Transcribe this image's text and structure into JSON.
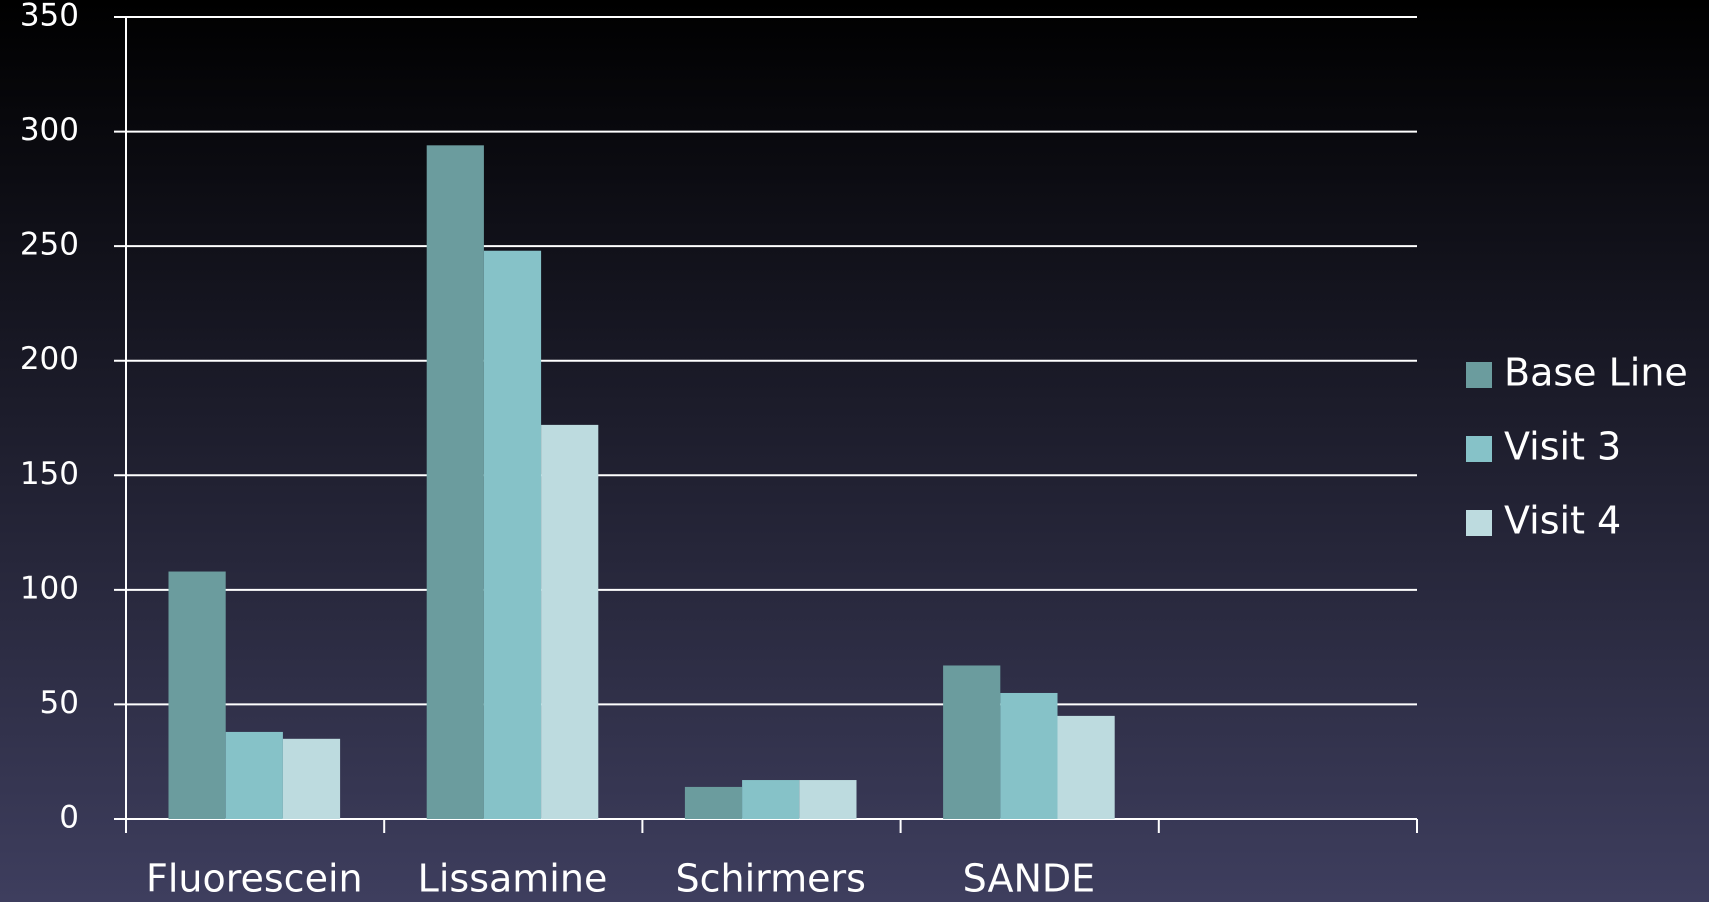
{
  "chart_data": {
    "type": "bar",
    "categories": [
      "Fluorescein",
      "Lissamine",
      "Schirmers",
      "SANDE",
      null
    ],
    "series": [
      {
        "name": "Base Line",
        "color": "#6b9c9e",
        "values": [
          108,
          294,
          14,
          67,
          null
        ]
      },
      {
        "name": "Visit 3",
        "color": "#86c2c8",
        "values": [
          38,
          248,
          17,
          55,
          null
        ]
      },
      {
        "name": "Visit 4",
        "color": "#bddbdf",
        "values": [
          35,
          172,
          17,
          45,
          null
        ]
      }
    ],
    "ylim": [
      0,
      350
    ],
    "yticks": [
      0,
      50,
      100,
      150,
      200,
      250,
      300,
      350
    ],
    "grid": true,
    "legend": "right"
  }
}
